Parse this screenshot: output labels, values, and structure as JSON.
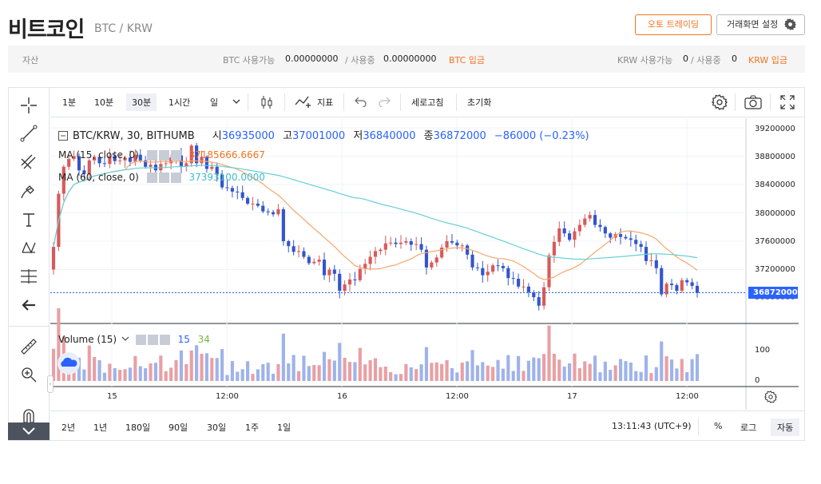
{
  "header": {
    "title": "비트코인",
    "pair": "BTC / KRW",
    "auto_trading": "오토 트레이딩",
    "settings": "거래화면 설정"
  },
  "asset_bar": {
    "label": "자산",
    "btc_avail_label": "BTC 사용가능",
    "btc_avail": "0.00000000",
    "btc_sep": "/ 사용중",
    "btc_used": "0.00000000",
    "btc_deposit": "BTC 입금",
    "krw_avail_label": "KRW 사용가능",
    "krw_avail": "0",
    "krw_sep": "/ 사용중",
    "krw_used": "0",
    "krw_deposit": "KRW 입금"
  },
  "toolbar": {
    "intervals": [
      "1분",
      "10분",
      "30분",
      "1시간",
      "일"
    ],
    "selected_interval": "30분",
    "indicators": "지표",
    "refresh": "세로고침",
    "reset": "초기화"
  },
  "legend": {
    "symbol": "BTC/KRW, 30, BITHUMB",
    "o_label": "시",
    "o": "36935000",
    "h_label": "고",
    "h": "37001000",
    "l_label": "저",
    "l": "36840000",
    "c_label": "종",
    "c": "36872000",
    "change": "−86000 (−0.23%)",
    "ma15_label": "MA (15, close, 0)",
    "ma15_value": "37185666.6667",
    "ma60_label": "MA (60, close, 0)",
    "ma60_value": "37393100.0000",
    "volume_label": "Volume (15)",
    "volume_a": "15",
    "volume_b": "34"
  },
  "price_axis": [
    "39200000",
    "38800000",
    "38400000",
    "38000000",
    "37600000",
    "37200000",
    "36800000"
  ],
  "last_price": "36872000",
  "volume_axis": [
    "100",
    "0"
  ],
  "time_axis": [
    "15",
    "12:00",
    "16",
    "12:00",
    "17",
    "12:00"
  ],
  "bottom": {
    "ranges": [
      "2년",
      "1년",
      "180일",
      "90일",
      "30일",
      "1주",
      "1일"
    ],
    "clock": "13:11:43 (UTC+9)",
    "percent": "%",
    "log": "로그",
    "auto": "자동"
  },
  "colors": {
    "up": "#d85a5a",
    "down": "#3355cc",
    "ma15": "#f7a66b",
    "ma60": "#63cfd6",
    "accent": "#f37321"
  },
  "chart_data": {
    "type": "candlestick",
    "interval": "30m",
    "x_labels": [
      "15",
      "12:00",
      "16",
      "12:00",
      "17",
      "12:00"
    ],
    "ylim": [
      36600000,
      39300000
    ],
    "series": [
      {
        "name": "price",
        "close": [
          37520000,
          38270000,
          38650000,
          38760000,
          38800000,
          38600000,
          38550000,
          38740000,
          38790000,
          38700000,
          38690000,
          38800000,
          38730000,
          38740000,
          38780000,
          38720000,
          38820000,
          38740000,
          38650000,
          38680000,
          38600000,
          38690000,
          38700000,
          38780000,
          38810000,
          38660000,
          38700000,
          38950000,
          38700000,
          38790000,
          38620000,
          38650000,
          38540000,
          38360000,
          38350000,
          38300000,
          38290000,
          38210000,
          38130000,
          38130000,
          38100000,
          38020000,
          38010000,
          37980000,
          38050000,
          37600000,
          37530000,
          37450000,
          37460000,
          37380000,
          37290000,
          37310000,
          37340000,
          37120000,
          37200000,
          37140000,
          36900000,
          36990000,
          37060000,
          37050000,
          37210000,
          37280000,
          37380000,
          37460000,
          37480000,
          37570000,
          37580000,
          37560000,
          37580000,
          37600000,
          37550000,
          37560000,
          37480000,
          37230000,
          37300000,
          37370000,
          37510000,
          37600000,
          37580000,
          37540000,
          37540000,
          37410000,
          37230000,
          37220000,
          37120000,
          37170000,
          37260000,
          37250000,
          37220000,
          37080000,
          37070000,
          36960000,
          36960000,
          36880000,
          36810000,
          36690000,
          36950000,
          37400000,
          37590000,
          37780000,
          37710000,
          37620000,
          37740000,
          37830000,
          37920000,
          37970000,
          37830000,
          37800000,
          37710000,
          37650000,
          37700000,
          37660000,
          37640000,
          37620000,
          37560000,
          37520000,
          37320000,
          37330000,
          37220000,
          36850000,
          37000000,
          36980000,
          36900000,
          37050000,
          37020000,
          36970000,
          36872000
        ]
      },
      {
        "name": "MA (15, close, 0)"
      },
      {
        "name": "MA (60, close, 0)"
      },
      {
        "name": "Volume (15)",
        "ylim": [
          0,
          120
        ]
      }
    ]
  }
}
